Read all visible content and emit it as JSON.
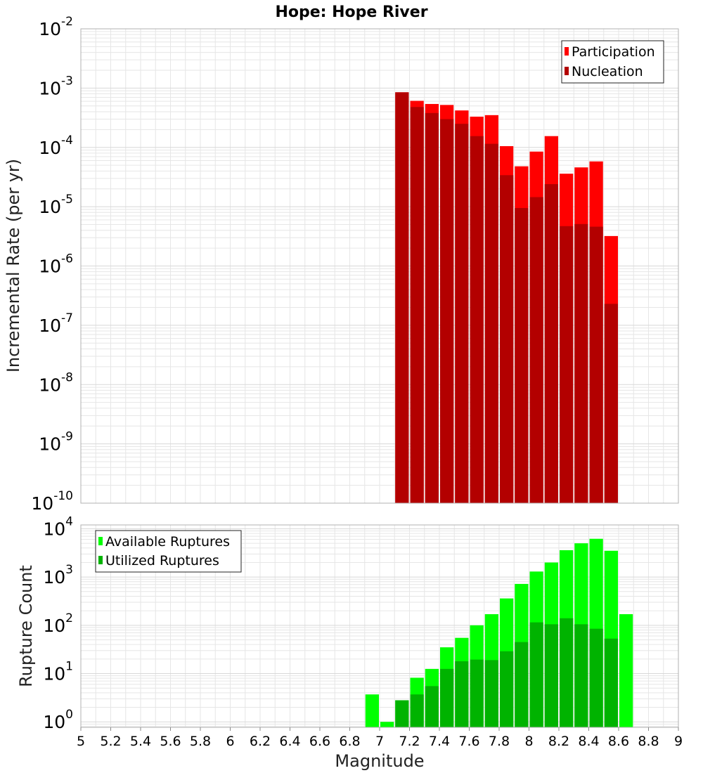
{
  "title": "Hope: Hope River",
  "colors": {
    "participation": "#ff0000",
    "nucleation": "#b30000",
    "available": "#00ff00",
    "utilized": "#00b300",
    "grid": "#e6e6e6",
    "frame": "#b0b0b0"
  },
  "chart_data": [
    {
      "type": "bar",
      "ylabel": "Incremental Rate (per yr)",
      "yscale": "log",
      "ylim": [
        1e-10,
        0.01
      ],
      "xlim": [
        5,
        9
      ],
      "y_ticks": [
        {
          "base": "10",
          "exp": "-10",
          "value": 1e-10
        },
        {
          "base": "10",
          "exp": "-9",
          "value": 1e-09
        },
        {
          "base": "10",
          "exp": "-8",
          "value": 1e-08
        },
        {
          "base": "10",
          "exp": "-7",
          "value": 1e-07
        },
        {
          "base": "10",
          "exp": "-6",
          "value": 1e-06
        },
        {
          "base": "10",
          "exp": "-5",
          "value": 1e-05
        },
        {
          "base": "10",
          "exp": "-4",
          "value": 0.0001
        },
        {
          "base": "10",
          "exp": "-3",
          "value": 0.001
        },
        {
          "base": "10",
          "exp": "-2",
          "value": 0.01
        }
      ],
      "legend": {
        "position": "top-right",
        "entries": [
          "Participation",
          "Nucleation"
        ]
      },
      "x": [
        7.15,
        7.25,
        7.35,
        7.45,
        7.55,
        7.65,
        7.75,
        7.85,
        7.95,
        8.05,
        8.15,
        8.25,
        8.35,
        8.45,
        8.55
      ],
      "series": [
        {
          "name": "Participation",
          "values": [
            0.00085,
            0.00061,
            0.00054,
            0.00052,
            0.00042,
            0.00033,
            0.00035,
            0.000105,
            4.8e-05,
            8.5e-05,
            0.000155,
            3.6e-05,
            4.6e-05,
            5.8e-05,
            3.2e-06
          ]
        },
        {
          "name": "Nucleation",
          "values": [
            0.00085,
            0.00048,
            0.00038,
            0.0003,
            0.00025,
            0.000155,
            0.000115,
            3.4e-05,
            9.5e-06,
            1.45e-05,
            2.4e-05,
            4.7e-06,
            5.1e-06,
            4.6e-06,
            2.3e-07
          ]
        }
      ]
    },
    {
      "type": "bar",
      "ylabel": "Rupture Count",
      "xlabel": "Magnitude",
      "yscale": "log",
      "ylim": [
        0.77,
        12000
      ],
      "xlim": [
        5,
        9
      ],
      "y_ticks": [
        {
          "base": "10",
          "exp": "0",
          "value": 1
        },
        {
          "base": "10",
          "exp": "1",
          "value": 10
        },
        {
          "base": "10",
          "exp": "2",
          "value": 100
        },
        {
          "base": "10",
          "exp": "3",
          "value": 1000
        },
        {
          "base": "10",
          "exp": "4",
          "value": 10000
        }
      ],
      "x_ticks": [
        "5",
        "5.2",
        "5.4",
        "5.6",
        "5.8",
        "6",
        "6.2",
        "6.4",
        "6.6",
        "6.8",
        "7",
        "7.2",
        "7.4",
        "7.6",
        "7.8",
        "8",
        "8.2",
        "8.4",
        "8.6",
        "8.8",
        "9"
      ],
      "legend": {
        "position": "top-left",
        "entries": [
          "Available Ruptures",
          "Utilized Ruptures"
        ]
      },
      "x": [
        6.95,
        7.05,
        7.15,
        7.25,
        7.35,
        7.45,
        7.55,
        7.65,
        7.75,
        7.85,
        7.95,
        8.05,
        8.15,
        8.25,
        8.35,
        8.45,
        8.55,
        8.65
      ],
      "series": [
        {
          "name": "Available Ruptures",
          "values": [
            3.7,
            1,
            2.8,
            8.2,
            12.5,
            35,
            55,
            100,
            170,
            360,
            720,
            1300,
            2000,
            3600,
            5000,
            6200,
            3500,
            170
          ]
        },
        {
          "name": "Utilized Ruptures",
          "values": [
            null,
            null,
            2.8,
            3.7,
            5.5,
            12.5,
            18,
            19.5,
            19,
            29,
            45,
            115,
            105,
            140,
            105,
            85,
            53,
            null
          ]
        }
      ]
    }
  ]
}
